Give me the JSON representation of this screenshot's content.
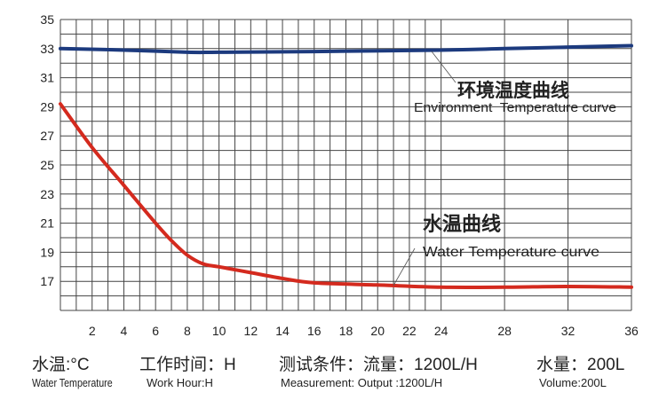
{
  "chart_data": {
    "type": "line",
    "xlim": [
      0,
      36
    ],
    "ylim": [
      15,
      35
    ],
    "x_ticks": [
      2,
      4,
      6,
      8,
      10,
      12,
      14,
      16,
      18,
      20,
      22,
      24,
      28,
      32,
      36
    ],
    "y_ticks": [
      17,
      19,
      21,
      23,
      25,
      27,
      29,
      31,
      33,
      35
    ],
    "grid": true,
    "xlabel": "工作时间：H / Work Hour:H",
    "ylabel": "水温:°C / Water Temperature",
    "series": [
      {
        "name": "环境温度曲线",
        "name_en": "Environment  Temperature curve",
        "color": "#1c3a7e",
        "x": [
          0,
          4,
          8,
          10,
          16,
          24,
          28,
          32,
          36
        ],
        "y": [
          33.0,
          32.9,
          32.75,
          32.75,
          32.8,
          32.9,
          33.0,
          33.1,
          33.2
        ]
      },
      {
        "name": "水温曲线",
        "name_en": "Water Temperature curve",
        "color": "#d42a1e",
        "x": [
          0,
          2,
          4,
          6,
          7,
          8,
          9,
          10,
          12,
          14,
          16,
          20,
          24,
          28,
          32,
          36
        ],
        "y": [
          29.2,
          26.2,
          23.6,
          21.0,
          19.8,
          18.8,
          18.2,
          18.0,
          17.6,
          17.2,
          16.9,
          16.75,
          16.6,
          16.6,
          16.65,
          16.6
        ]
      }
    ]
  },
  "footer": {
    "water_temp_cn": "水温:°C",
    "water_temp_en": "Water Temperature",
    "work_hour_cn": "工作时间：H",
    "work_hour_en": "Work Hour:H",
    "measurement_cn": "测试条件：流量：1200L/H",
    "measurement_en": "Measurement: Output :1200L/H",
    "volume_cn": "水量：200L",
    "volume_en": "Volume:200L"
  }
}
